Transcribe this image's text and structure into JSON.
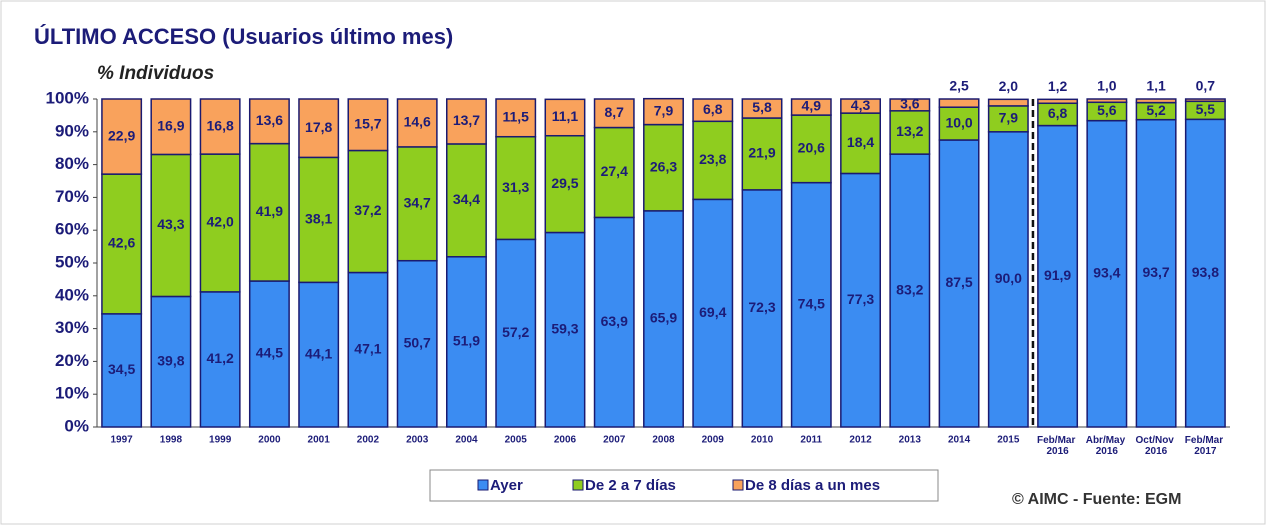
{
  "chart_data": {
    "type": "stacked_bar",
    "title": "ÚLTIMO ACCESO (Usuarios último mes)",
    "y_label": "% Individuos",
    "source": "© AIMC - Fuente: EGM",
    "categories": [
      "1997",
      "1998",
      "1999",
      "2000",
      "2001",
      "2002",
      "2003",
      "2004",
      "2005",
      "2006",
      "2007",
      "2008",
      "2009",
      "2010",
      "2011",
      "2012",
      "2013",
      "2014",
      "2015",
      "Feb/Mar 2016",
      "Abr/May 2016",
      "Oct/Nov 2016",
      "Feb/Mar 2017"
    ],
    "ylim": [
      0,
      100
    ],
    "yticks": [
      {
        "value": 0,
        "label": "0%"
      },
      {
        "value": 10,
        "label": "10%"
      },
      {
        "value": 20,
        "label": "20%"
      },
      {
        "value": 30,
        "label": "30%"
      },
      {
        "value": 40,
        "label": "40%"
      },
      {
        "value": 50,
        "label": "50%"
      },
      {
        "value": 60,
        "label": "60%"
      },
      {
        "value": 70,
        "label": "70%"
      },
      {
        "value": 80,
        "label": "80%"
      },
      {
        "value": 90,
        "label": "90%"
      },
      {
        "value": 100,
        "label": "100%"
      }
    ],
    "legend": "bottom",
    "series": [
      {
        "name": "Ayer",
        "color": "#3b8cf2",
        "values": [
          34.5,
          39.8,
          41.2,
          44.5,
          44.1,
          47.1,
          50.7,
          51.9,
          57.2,
          59.3,
          63.9,
          65.9,
          69.4,
          72.3,
          74.5,
          77.3,
          83.2,
          87.5,
          90.0,
          91.9,
          93.4,
          93.7,
          93.8
        ],
        "value_labels": [
          "34,5",
          "39,8",
          "41,2",
          "44,5",
          "44,1",
          "47,1",
          "50,7",
          "51,9",
          "57,2",
          "59,3",
          "63,9",
          "65,9",
          "69,4",
          "72,3",
          "74,5",
          "77,3",
          "83,2",
          "87,5",
          "90,0",
          "91,9",
          "93,4",
          "93,7",
          "93,8"
        ]
      },
      {
        "name": "De 2 a 7 días",
        "color": "#8fcd1f",
        "values": [
          42.6,
          43.3,
          42.0,
          41.9,
          38.1,
          37.2,
          34.7,
          34.4,
          31.3,
          29.5,
          27.4,
          26.3,
          23.8,
          21.9,
          20.6,
          18.4,
          13.2,
          10.0,
          7.9,
          6.8,
          5.6,
          5.2,
          5.5
        ],
        "value_labels": [
          "42,6",
          "43,3",
          "42,0",
          "41,9",
          "38,1",
          "37,2",
          "34,7",
          "34,4",
          "31,3",
          "29,5",
          "27,4",
          "26,3",
          "23,8",
          "21,9",
          "20,6",
          "18,4",
          "13,2",
          "10,0",
          "7,9",
          "6,8",
          "5,6",
          "5,2",
          "5,5"
        ]
      },
      {
        "name": "De 8 días a un mes",
        "color": "#f9a25c",
        "values": [
          22.9,
          16.9,
          16.8,
          13.6,
          17.8,
          15.7,
          14.6,
          13.7,
          11.5,
          11.1,
          8.7,
          7.9,
          6.8,
          5.8,
          4.9,
          4.3,
          3.6,
          2.5,
          2.0,
          1.2,
          1.0,
          1.1,
          0.7
        ],
        "value_labels": [
          "22,9",
          "16,9",
          "16,8",
          "13,6",
          "17,8",
          "15,7",
          "14,6",
          "13,7",
          "11,5",
          "11,1",
          "8,7",
          "7,9",
          "6,8",
          "5,8",
          "4,9",
          "4,3",
          "3,6",
          "2,5",
          "2,0",
          "1,2",
          "1,0",
          "1,1",
          "0,7"
        ]
      }
    ]
  }
}
